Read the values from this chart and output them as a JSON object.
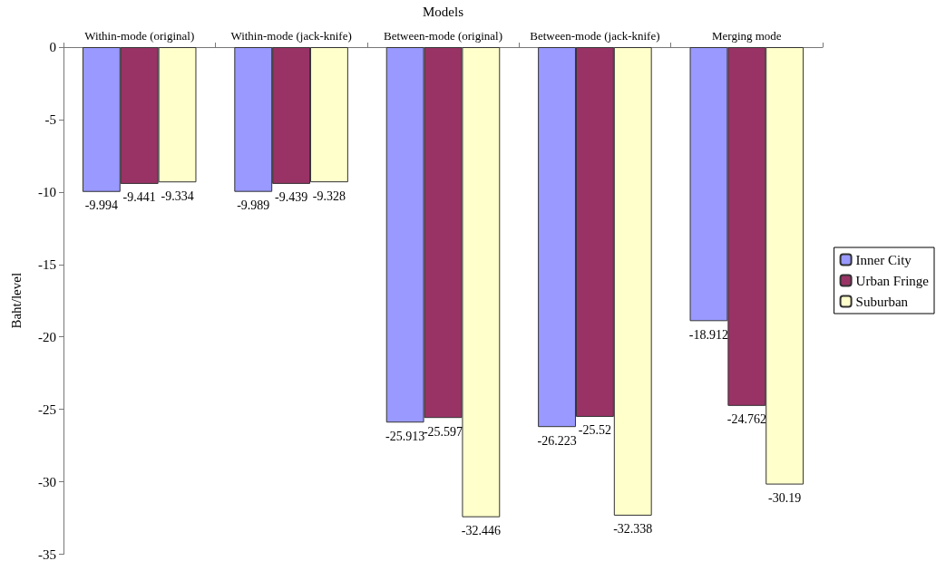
{
  "chart_data": {
    "type": "bar",
    "xlabel": "Models",
    "ylabel": "Baht/level",
    "categories": [
      "Within-mode (original)",
      "Within-mode (jack-knife)",
      "Between-mode (original)",
      "Between-mode (jack-knife)",
      "Merging mode"
    ],
    "series": [
      {
        "name": "Inner City",
        "color": "#9999ff",
        "values": [
          -9.994,
          -9.989,
          -25.913,
          -26.223,
          -18.912
        ]
      },
      {
        "name": "Urban Fringe",
        "color": "#993366",
        "values": [
          -9.441,
          -9.439,
          -25.597,
          -25.52,
          -24.762
        ]
      },
      {
        "name": "Suburban",
        "color": "#ffffcc",
        "values": [
          -9.334,
          -9.328,
          -32.446,
          -32.338,
          -30.19
        ]
      }
    ],
    "ylim": [
      -35,
      0
    ],
    "yticks": [
      -35,
      -30,
      -25,
      -20,
      -15,
      -10,
      -5,
      0
    ],
    "grid": false,
    "legend": "right",
    "data_labels": true
  }
}
